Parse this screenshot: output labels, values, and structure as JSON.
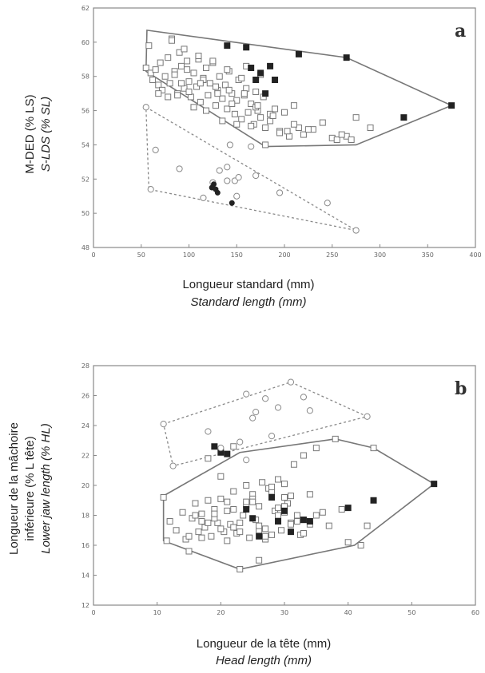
{
  "chart_data": [
    {
      "type": "scatter",
      "panel_label": "a",
      "xlabel": "Longueur standard (mm)",
      "xlabel_en": "Standard length (mm)",
      "ylabel": "M-DED (% LS)",
      "ylabel_en": "S-LDS (% SL)",
      "xlim": [
        0,
        400
      ],
      "ylim": [
        48,
        62
      ],
      "xticks": [
        0,
        50,
        100,
        150,
        200,
        250,
        300,
        350,
        400
      ],
      "yticks": [
        48,
        50,
        52,
        54,
        56,
        58,
        60,
        62
      ],
      "grid": false,
      "series": [
        {
          "marker": "open-square",
          "x": [
            55,
            58,
            60,
            62,
            65,
            68,
            70,
            72,
            75,
            78,
            80,
            82,
            85,
            88,
            90,
            92,
            95,
            98,
            100,
            102,
            105,
            108,
            110,
            112,
            115,
            118,
            120,
            122,
            125,
            128,
            130,
            132,
            135,
            138,
            140,
            142,
            145,
            148,
            150,
            152,
            155,
            158,
            160,
            162,
            165,
            168,
            170,
            172,
            175,
            178,
            180,
            185,
            190,
            195,
            200,
            205,
            210,
            215,
            220,
            230,
            240,
            250,
            255,
            265,
            275,
            290,
            82,
            95,
            110,
            125,
            140,
            160,
            175,
            88,
            100,
            115,
            130,
            145,
            155,
            170,
            185,
            68,
            78,
            92,
            105,
            118,
            135,
            150,
            165,
            180,
            195,
            210,
            225,
            260,
            270,
            85,
            98,
            112,
            128,
            142,
            158,
            172,
            188,
            203
          ],
          "y": [
            58.5,
            59.8,
            58.2,
            57.8,
            58.4,
            57.5,
            58.8,
            57.2,
            58.0,
            59.1,
            57.6,
            60.2,
            58.3,
            57.0,
            59.4,
            58.6,
            57.3,
            58.9,
            57.7,
            56.8,
            58.2,
            57.4,
            59.0,
            56.5,
            57.9,
            58.5,
            56.9,
            57.6,
            58.8,
            56.3,
            57.2,
            58.0,
            56.7,
            57.5,
            56.1,
            58.3,
            57.0,
            55.8,
            56.6,
            57.8,
            55.5,
            56.9,
            57.3,
            55.9,
            56.4,
            55.2,
            57.1,
            56.0,
            55.6,
            56.8,
            54.0,
            55.4,
            56.1,
            54.8,
            55.9,
            54.5,
            56.3,
            55.0,
            54.6,
            54.9,
            55.3,
            54.4,
            54.3,
            54.5,
            55.6,
            55.0,
            60.1,
            59.6,
            59.2,
            58.9,
            58.4,
            58.6,
            58.1,
            56.9,
            57.1,
            57.8,
            57.0,
            56.4,
            57.9,
            56.2,
            55.8,
            57.0,
            56.8,
            57.6,
            56.2,
            56.0,
            55.4,
            55.2,
            55.1,
            55.0,
            54.7,
            55.2,
            54.9,
            54.6,
            54.3,
            58.1,
            58.4,
            57.6,
            57.4,
            57.2,
            57.0,
            56.3,
            55.7,
            54.8
          ]
        },
        {
          "marker": "filled-square",
          "x": [
            140,
            160,
            165,
            175,
            185,
            190,
            170,
            180,
            215,
            265,
            325,
            375
          ],
          "y": [
            59.8,
            59.7,
            58.5,
            58.2,
            58.6,
            57.8,
            57.8,
            57.0,
            59.3,
            59.1,
            55.6,
            56.3
          ]
        },
        {
          "marker": "open-circle",
          "x": [
            55,
            60,
            65,
            90,
            125,
            132,
            140,
            143,
            148,
            152,
            165,
            170,
            195,
            245,
            275,
            140,
            150,
            115
          ],
          "y": [
            56.2,
            51.4,
            53.7,
            52.6,
            51.8,
            52.5,
            52.7,
            54.0,
            51.9,
            52.1,
            53.9,
            52.2,
            51.2,
            50.6,
            49.0,
            51.9,
            51.0,
            50.9
          ]
        },
        {
          "marker": "filled-circle",
          "x": [
            124,
            128,
            130,
            126,
            145
          ],
          "y": [
            51.5,
            51.4,
            51.2,
            51.7,
            50.6
          ]
        }
      ],
      "hull_solid": [
        [
          56,
          60.7
        ],
        [
          265,
          59.1
        ],
        [
          375,
          56.3
        ],
        [
          275,
          54.0
        ],
        [
          180,
          53.9
        ],
        [
          55,
          58.3
        ]
      ],
      "hull_dashed": [
        [
          55,
          56.2
        ],
        [
          275,
          49.0
        ],
        [
          58,
          51.4
        ]
      ]
    },
    {
      "type": "scatter",
      "panel_label": "b",
      "xlabel": "Longueur de la tête (mm)",
      "xlabel_en": "Head length (mm)",
      "ylabel": "Longueur de la mâchoire inférieure (% L tête)",
      "ylabel_en": "Lower jaw length (% HL)",
      "xlim": [
        0,
        60
      ],
      "ylim": [
        12,
        28
      ],
      "xticks": [
        0,
        10,
        20,
        30,
        40,
        50,
        60
      ],
      "yticks": [
        12,
        14,
        16,
        18,
        20,
        22,
        24,
        26,
        28
      ],
      "grid": false,
      "series": [
        {
          "marker": "open-square",
          "x": [
            11,
            11.5,
            12,
            13,
            14,
            14.5,
            15,
            15.5,
            16,
            16.5,
            17,
            17.5,
            18,
            18.5,
            19,
            19.5,
            20,
            20.5,
            21,
            21.5,
            22,
            22.5,
            23,
            23.5,
            24,
            24.5,
            25,
            25.5,
            26,
            26.5,
            27,
            27.5,
            28,
            28.5,
            29,
            29.5,
            30,
            30.5,
            31,
            31.5,
            32,
            32.5,
            33,
            34,
            35,
            36,
            37,
            38,
            39,
            40,
            42,
            43,
            44,
            16,
            18,
            20,
            22,
            24,
            26,
            28,
            30,
            32,
            34,
            17,
            19,
            21,
            23,
            25,
            27,
            29,
            31,
            33,
            20,
            22,
            24,
            26,
            28,
            30,
            15,
            17,
            19,
            21,
            23,
            25,
            27,
            29,
            31,
            33,
            35,
            18,
            22,
            26,
            30
          ],
          "y": [
            19.2,
            16.3,
            17.6,
            17.0,
            18.2,
            16.4,
            15.6,
            17.8,
            18.8,
            16.9,
            18.1,
            17.2,
            19.0,
            16.6,
            18.4,
            17.5,
            20.6,
            16.9,
            18.9,
            17.4,
            19.6,
            16.8,
            14.4,
            18.0,
            20.0,
            16.5,
            19.4,
            17.7,
            18.6,
            20.2,
            17.1,
            19.8,
            16.7,
            18.3,
            20.4,
            17.0,
            19.2,
            18.8,
            17.5,
            21.4,
            18.0,
            16.7,
            22.0,
            17.4,
            22.5,
            18.2,
            17.3,
            23.1,
            18.4,
            16.2,
            16.0,
            17.3,
            22.5,
            18.0,
            17.5,
            19.1,
            17.2,
            18.7,
            17.0,
            19.6,
            18.2,
            17.6,
            19.4,
            16.5,
            17.8,
            18.3,
            16.9,
            19.1,
            16.4,
            18.5,
            17.4,
            16.8,
            17.1,
            18.4,
            18.9,
            17.3,
            19.9,
            18.6,
            16.6,
            17.6,
            18.1,
            16.3,
            17.5,
            18.9,
            16.6,
            18.0,
            19.3,
            17.7,
            18.0,
            21.8,
            22.6,
            15.0,
            20.1
          ]
        },
        {
          "marker": "filled-square",
          "x": [
            19,
            20,
            21,
            25,
            28,
            29,
            30,
            31,
            33,
            34,
            40,
            44,
            53.5,
            24,
            26
          ],
          "y": [
            22.6,
            22.2,
            22.1,
            17.8,
            19.2,
            17.6,
            18.3,
            16.9,
            17.7,
            17.6,
            18.5,
            19.0,
            20.1,
            18.4,
            16.6
          ]
        },
        {
          "marker": "open-circle",
          "x": [
            11,
            12.5,
            18,
            20,
            23,
            24,
            25,
            25.5,
            27,
            28,
            29,
            31,
            33,
            34,
            43,
            24
          ],
          "y": [
            24.1,
            21.3,
            23.6,
            22.5,
            22.9,
            26.1,
            24.5,
            24.9,
            25.8,
            23.3,
            25.2,
            26.9,
            25.9,
            25.0,
            24.6,
            21.7
          ]
        }
      ],
      "hull_solid": [
        [
          11,
          19.3
        ],
        [
          23,
          22.2
        ],
        [
          38,
          23.1
        ],
        [
          44,
          22.5
        ],
        [
          53.5,
          20.1
        ],
        [
          41,
          16.0
        ],
        [
          23,
          14.4
        ],
        [
          11,
          16.3
        ]
      ],
      "hull_dashed": [
        [
          11,
          24.1
        ],
        [
          31,
          26.9
        ],
        [
          43,
          24.6
        ],
        [
          12.5,
          21.3
        ]
      ]
    }
  ]
}
